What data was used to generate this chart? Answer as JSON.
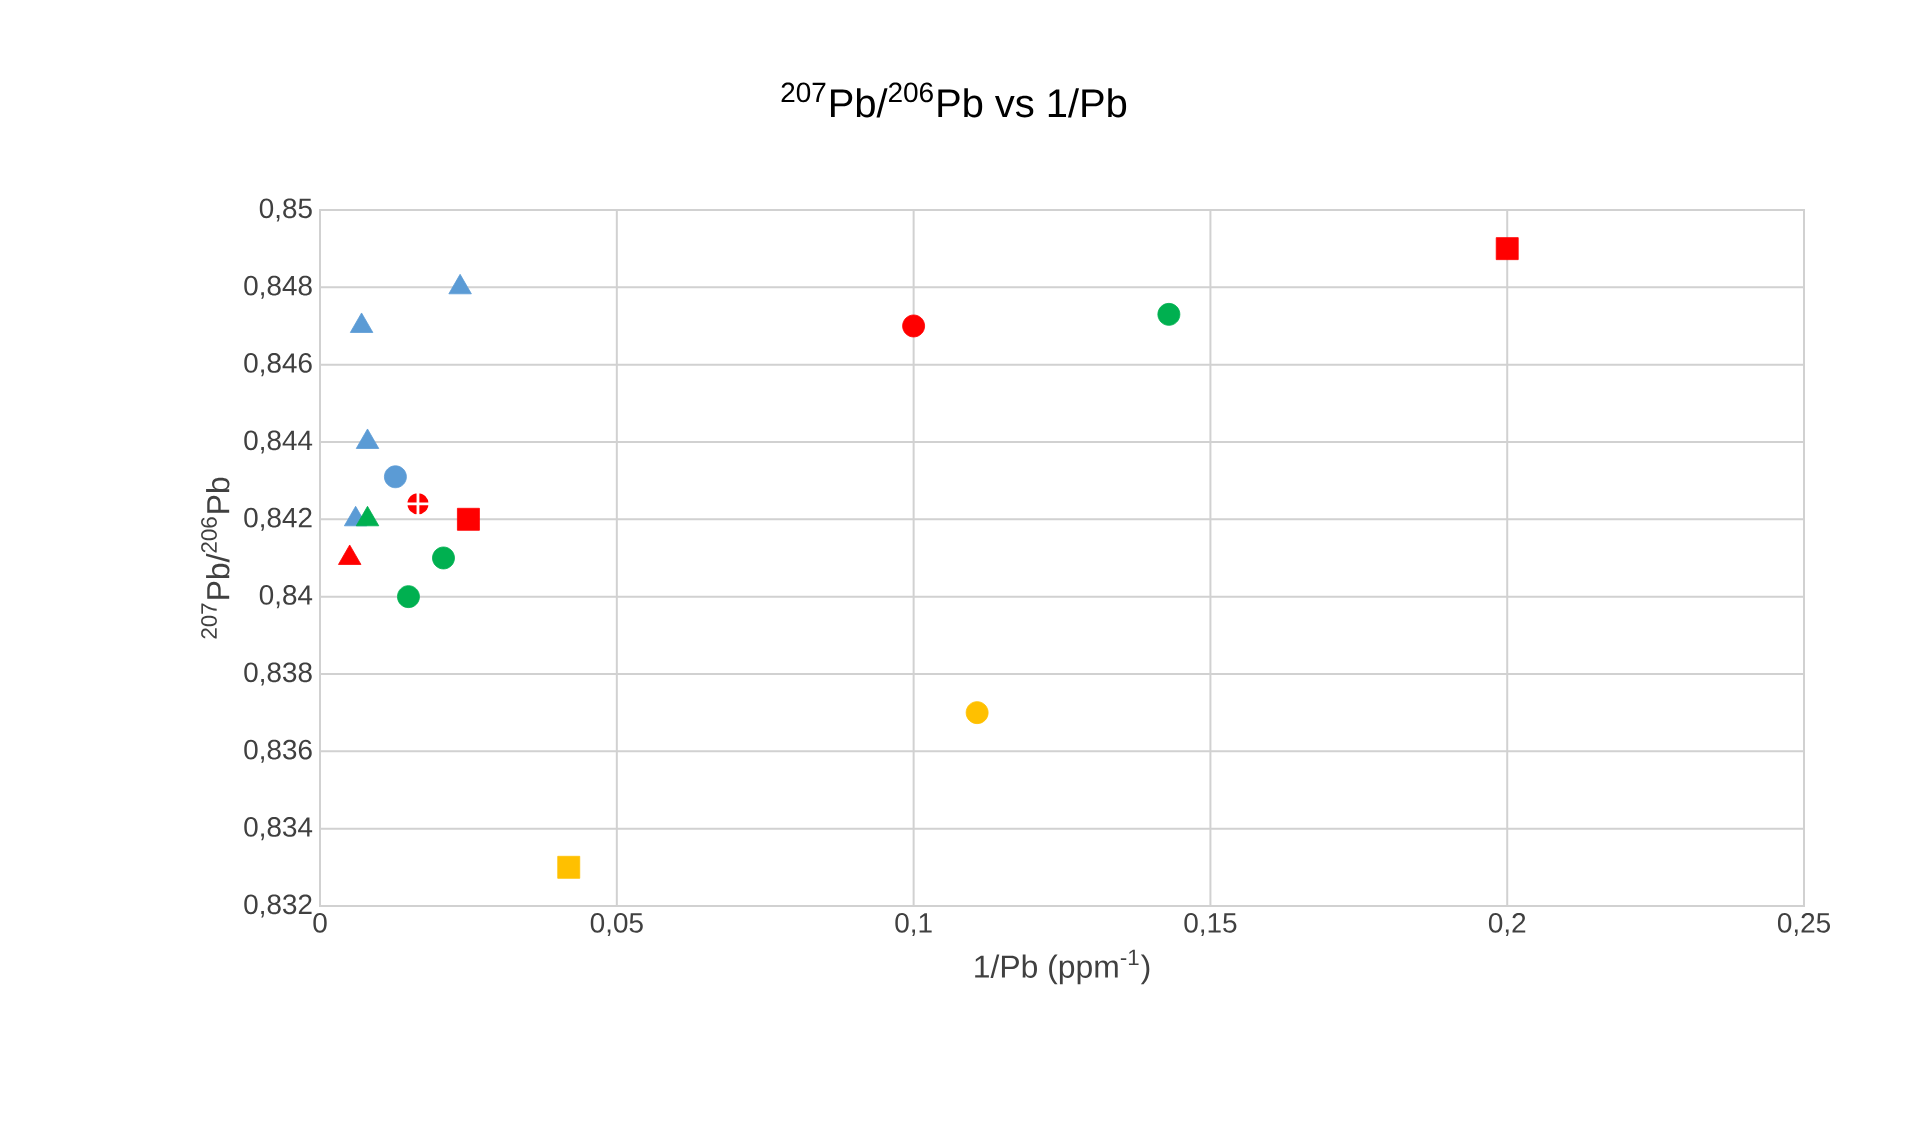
{
  "chart_data": {
    "type": "scatter",
    "title": "$^{207}$Pb/$^{206}$Pb vs 1/Pb",
    "xlabel": "1/Pb (ppm$^{-1}$)",
    "ylabel": "$^{207}$Pb/$^{206}$Pb",
    "xlim": [
      0,
      0.25
    ],
    "ylim": [
      0.832,
      0.85
    ],
    "xticks": [
      0,
      {
        "value": 0.05,
        "label": "0,05"
      },
      {
        "value": 0.1,
        "label": "0,1"
      },
      {
        "value": 0.15,
        "label": "0,15"
      },
      {
        "value": 0.2,
        "label": "0,2"
      },
      {
        "value": 0.25,
        "label": "0,25"
      }
    ],
    "yticks": [
      {
        "value": 0.832,
        "label": "0,832"
      },
      {
        "value": 0.834,
        "label": "0,834"
      },
      {
        "value": 0.836,
        "label": "0,836"
      },
      {
        "value": 0.838,
        "label": "0,838"
      },
      {
        "value": 0.84,
        "label": "0,84"
      },
      {
        "value": 0.842,
        "label": "0,842"
      },
      {
        "value": 0.844,
        "label": "0,844"
      },
      {
        "value": 0.846,
        "label": "0,846"
      },
      {
        "value": 0.848,
        "label": "0,848"
      },
      {
        "value": 0.85,
        "label": "0,85"
      }
    ],
    "grid": true,
    "series": [
      {
        "color": "#5b9bd5",
        "marker": "triangle",
        "x": [
          0.007,
          0.0236
        ],
        "values": [
          0.847,
          0.848
        ]
      },
      {
        "color": "#5b9bd5",
        "marker": "triangle",
        "x": [
          0.008,
          0.006
        ],
        "values": [
          0.844,
          0.842
        ]
      },
      {
        "color": "#5b9bd5",
        "marker": "circle",
        "x": [
          0.0127
        ],
        "values": [
          0.8431
        ]
      },
      {
        "color": "#00b050",
        "marker": "triangle",
        "x": [
          0.008
        ],
        "values": [
          0.842
        ]
      },
      {
        "color": "#00b050",
        "marker": "circle",
        "x": [
          0.0208,
          0.0149
        ],
        "values": [
          0.841,
          0.84
        ]
      },
      {
        "color": "#00b050",
        "marker": "circle",
        "x": [
          0.143
        ],
        "values": [
          0.8473
        ]
      },
      {
        "color": "#ff0000",
        "marker": "triangle",
        "x": [
          0.005
        ],
        "values": [
          0.841
        ]
      },
      {
        "color": "#ff0000",
        "marker": "cross",
        "x": [
          0.0165
        ],
        "values": [
          0.8424
        ]
      },
      {
        "color": "#ff0000",
        "marker": "square",
        "x": [
          0.025,
          0.2
        ],
        "values": [
          0.842,
          0.849
        ]
      },
      {
        "color": "#ff0000",
        "marker": "circle",
        "x": [
          0.1
        ],
        "values": [
          0.847
        ]
      },
      {
        "color": "#ffc000",
        "marker": "circle",
        "x": [
          0.1107
        ],
        "values": [
          0.837
        ]
      },
      {
        "color": "#ffc000",
        "marker": "square",
        "x": [
          0.0419
        ],
        "values": [
          0.833
        ]
      }
    ]
  }
}
